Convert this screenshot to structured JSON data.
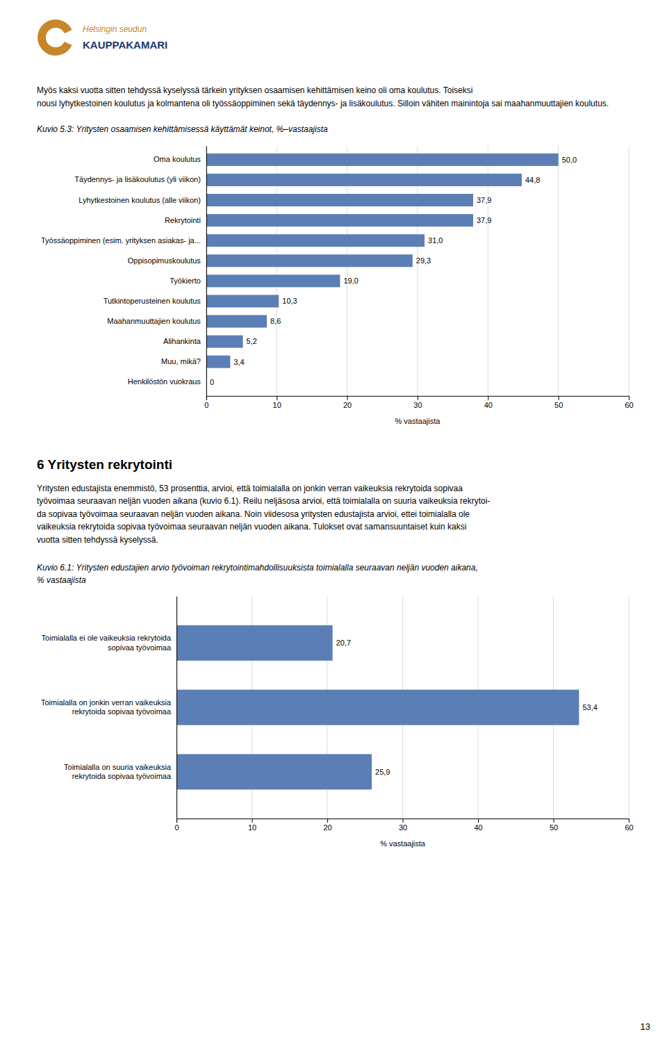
{
  "logo": {
    "texts": [
      "Helsingin seudun",
      "KAUPPAKAMARI"
    ],
    "text_colors": [
      "#c8862a",
      "#1a3a6b"
    ],
    "color": "#c8862a"
  },
  "header_text": "Myös kaksi vuotta sitten tehdyssä kyselyssä tärkein yrityksen osaamisen kehittämisen keino oli oma koulutus. Toiseksi\nnousi lyhytkestoinen koulutus ja kolmantena oli työssäoppiminen sekä täydennys- ja lisäkoulutus. Silloin vähiten mainintoja sai maahanmuuttajien koulutus.",
  "section_title": "6 Yritysten rekrytointi",
  "section_text": "Yritysten edustajista enemmistö, 53 prosenttia, arvioi, että toimialalla on jonkin verran vaikeuksia rekrytoida sopivaa\ntyövoimaa seuraavan neljän vuoden aikana (kuvio 6.1). Reilu neljäsosa arvioi, että toimialalla on suuria vaikeuksia rekrytoi-\nda sopivaa työvoimaa seuraavan neljän vuoden aikana. Noin viidesosa yritysten edustajista arvioi, ettei toimialalla ole\nvaikeuksia rekrytoida sopivaa työvoimaa seuraavan neljän vuoden aikana. Tulokset ovat samansuuntaiset kuin kaksi\nvuotta sitten tehdyssä kyselyssä.",
  "page_number": "13",
  "chart_data": [
    {
      "type": "bar",
      "orientation": "horizontal",
      "title": "Kuvio 5.3: Yritysten osaamisen kehittämisessä käyttämät keinot, %–vastaajista",
      "categories": [
        "Oma koulutus",
        "Täydennys- ja lisäkoulutus (yli viikon)",
        "Lyhytkestoinen koulutus (alle viikon)",
        "Rekrytointi",
        "Työssäoppiminen (esim. yrityksen asiakas- ja...",
        "Oppisopimuskoulutus",
        "Työkierto",
        "Tutkintoperusteinen koulutus",
        "Maahanmuuttajien koulutus",
        "Alihankinta",
        "Muu, mikä?",
        "Henkilöstön vuokraus"
      ],
      "values": [
        50.0,
        44.8,
        37.9,
        37.9,
        31.0,
        29.3,
        19.0,
        10.3,
        8.6,
        5.2,
        3.4,
        0
      ],
      "value_labels": [
        "50,0",
        "44,8",
        "37,9",
        "37,9",
        "31,0",
        "29,3",
        "19,0",
        "10,3",
        "8,6",
        "5,2",
        "3,4",
        "0"
      ],
      "data_labels": true,
      "color": "#5b7fb5",
      "xlabel": "% vastaajista",
      "xlim": [
        0,
        60
      ],
      "xticks": [
        0,
        10,
        20,
        30,
        40,
        50,
        60
      ],
      "grid": true
    },
    {
      "type": "bar",
      "orientation": "horizontal",
      "title": "Kuvio 6.1: Yritysten edustajien arvio työvoiman rekrytointimahdollisuuksista toimialalla seuraavan neljän vuoden aikana,\n% vastaajista",
      "categories": [
        "Toimialalla ei ole vaikeuksia rekrytoida\nsopivaa työvoimaa",
        "Toimialalla on jonkin verran vaikeuksia\nrekrytoida sopivaa työvoimaa",
        "Toimialalla on suuria vaikeuksia\nrekrytoida sopivaa työvoimaa"
      ],
      "values": [
        20.7,
        53.4,
        25.9
      ],
      "value_labels": [
        "20,7",
        "53,4",
        "25,9"
      ],
      "data_labels": true,
      "color": "#5b7fb5",
      "xlabel": "% vastaajista",
      "xlim": [
        0,
        60
      ],
      "xticks": [
        0,
        10,
        20,
        30,
        40,
        50,
        60
      ],
      "grid": true
    }
  ]
}
